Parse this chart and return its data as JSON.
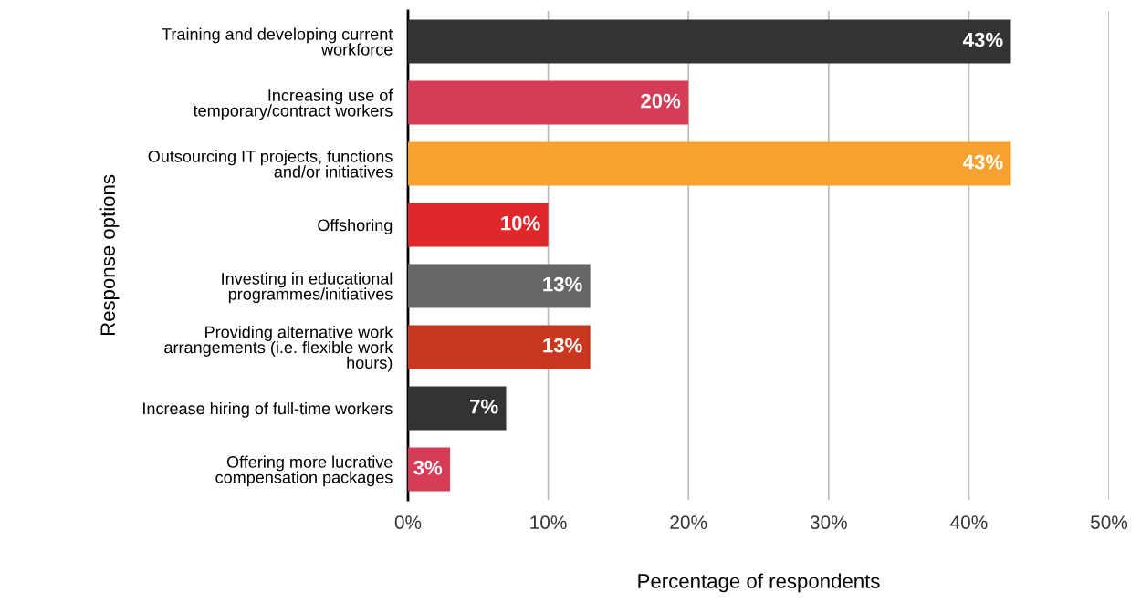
{
  "chart_data": {
    "type": "bar",
    "orientation": "horizontal",
    "xlabel": "Percentage of respondents",
    "ylabel": "Response options",
    "categories": [
      "Training and developing current\nworkforce",
      "Increasing use of\ntemporary/contract workers",
      "Outsourcing IT projects, functions\nand/or initiatives",
      "Offshoring",
      "Investing in educational\nprogrammes/initiatives",
      "Providing alternative work\narrangements (i.e. flexible work\nhours)",
      "Increase hiring of full-time workers",
      "Offering more lucrative\ncompensation packages"
    ],
    "values": [
      43,
      20,
      43,
      10,
      13,
      13,
      7,
      3
    ],
    "colors": [
      "#333333",
      "#d63c55",
      "#f7a230",
      "#e0282a",
      "#666666",
      "#c9381e",
      "#333333",
      "#d63c55"
    ],
    "value_labels": [
      "43%",
      "20%",
      "43%",
      "10%",
      "13%",
      "13%",
      "7%",
      "3%"
    ],
    "xlim": [
      0,
      50
    ],
    "xticks": [
      {
        "value": 0,
        "label": "0%"
      },
      {
        "value": 10,
        "label": "10%"
      },
      {
        "value": 20,
        "label": "20%"
      },
      {
        "value": 30,
        "label": "30%"
      },
      {
        "value": 40,
        "label": "40%"
      },
      {
        "value": 50,
        "label": "50%"
      }
    ],
    "grid": "x",
    "legend": false
  }
}
